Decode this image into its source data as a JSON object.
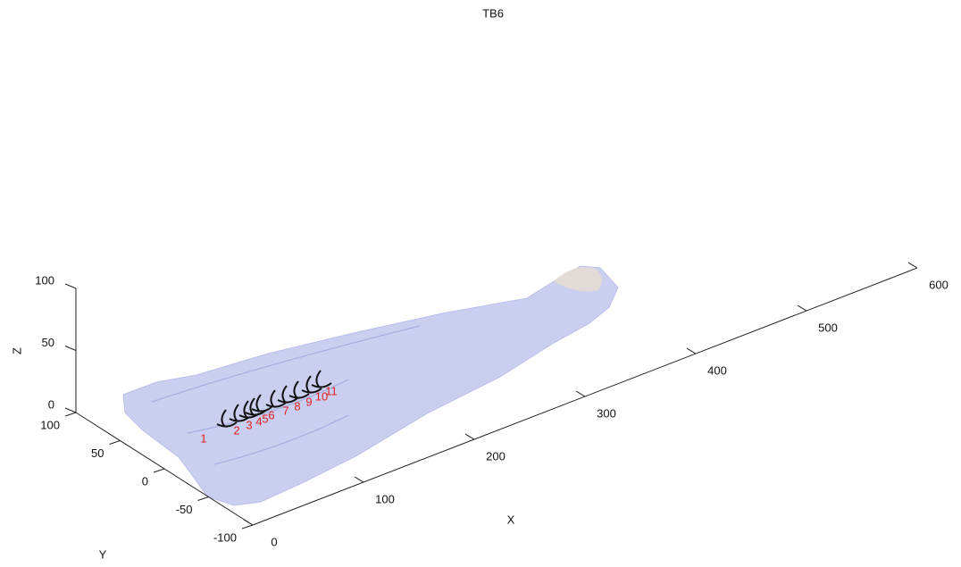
{
  "chart_data": {
    "type": "surface3d",
    "title": "TB6",
    "xlabel": "X",
    "ylabel": "Y",
    "zlabel": "Z",
    "xlim": [
      0,
      600
    ],
    "xticks": [
      0,
      100,
      200,
      300,
      400,
      500,
      600
    ],
    "ylim": [
      -100,
      100
    ],
    "yticks": [
      -100,
      -50,
      0,
      50,
      100
    ],
    "zlim": [
      0,
      100
    ],
    "zticks": [
      0,
      50,
      100
    ],
    "annotations": [
      "1",
      "2",
      "3",
      "4",
      "5",
      "6",
      "7",
      "8",
      "9",
      "10",
      "11"
    ],
    "surface_color": "#b9bfea",
    "annotation_color": "#e02020"
  }
}
